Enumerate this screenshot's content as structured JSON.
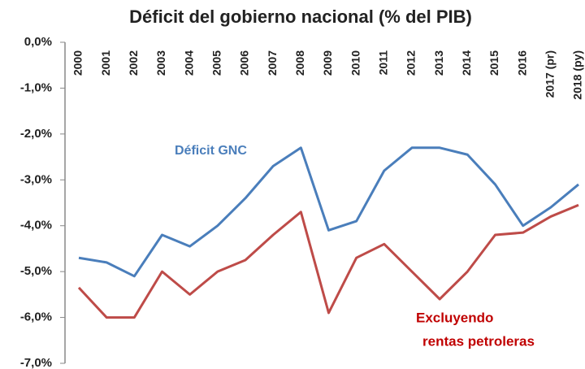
{
  "chart_data": {
    "type": "line",
    "title": "Déficit del gobierno nacional (% del PIB)",
    "categories": [
      "2000",
      "2001",
      "2002",
      "2003",
      "2004",
      "2005",
      "2006",
      "2007",
      "2008",
      "2009",
      "2010",
      "2011",
      "2012",
      "2013",
      "2014",
      "2015",
      "2016",
      "2017 (pr)",
      "2018 (py)"
    ],
    "series": [
      {
        "color": "#4a7ebb",
        "values": [
          -4.7,
          -4.8,
          -5.1,
          -4.2,
          -4.45,
          -4.0,
          -3.4,
          -2.7,
          -2.3,
          -4.1,
          -3.9,
          -2.8,
          -2.3,
          -2.3,
          -2.45,
          -3.1,
          -4.0,
          -3.6,
          -3.1
        ]
      },
      {
        "color": "#be4b48",
        "values": [
          -5.35,
          -6.0,
          -6.0,
          -5.0,
          -5.5,
          -5.0,
          -4.75,
          -4.2,
          -3.7,
          -5.9,
          -4.7,
          -4.4,
          -5.0,
          -5.6,
          -5.0,
          -4.2,
          -4.15,
          -3.8,
          -3.55
        ]
      }
    ],
    "annotations": [
      {
        "text": "Déficit GNC",
        "color": "#4a7ebb"
      },
      {
        "text": "Excluyendo",
        "color": "#c00000"
      },
      {
        "text": "rentas petroleras",
        "color": "#c00000"
      }
    ],
    "ylim": [
      -7,
      0
    ],
    "yticks": [
      {
        "value": 0,
        "label": "0,0%"
      },
      {
        "value": -1,
        "label": "-1,0%"
      },
      {
        "value": -2,
        "label": "-2,0%"
      },
      {
        "value": -3,
        "label": "-3,0%"
      },
      {
        "value": -4,
        "label": "-4,0%"
      },
      {
        "value": -5,
        "label": "-5,0%"
      },
      {
        "value": -6,
        "label": "-6,0%"
      },
      {
        "value": -7,
        "label": "-7,0%"
      }
    ],
    "grid": false
  }
}
